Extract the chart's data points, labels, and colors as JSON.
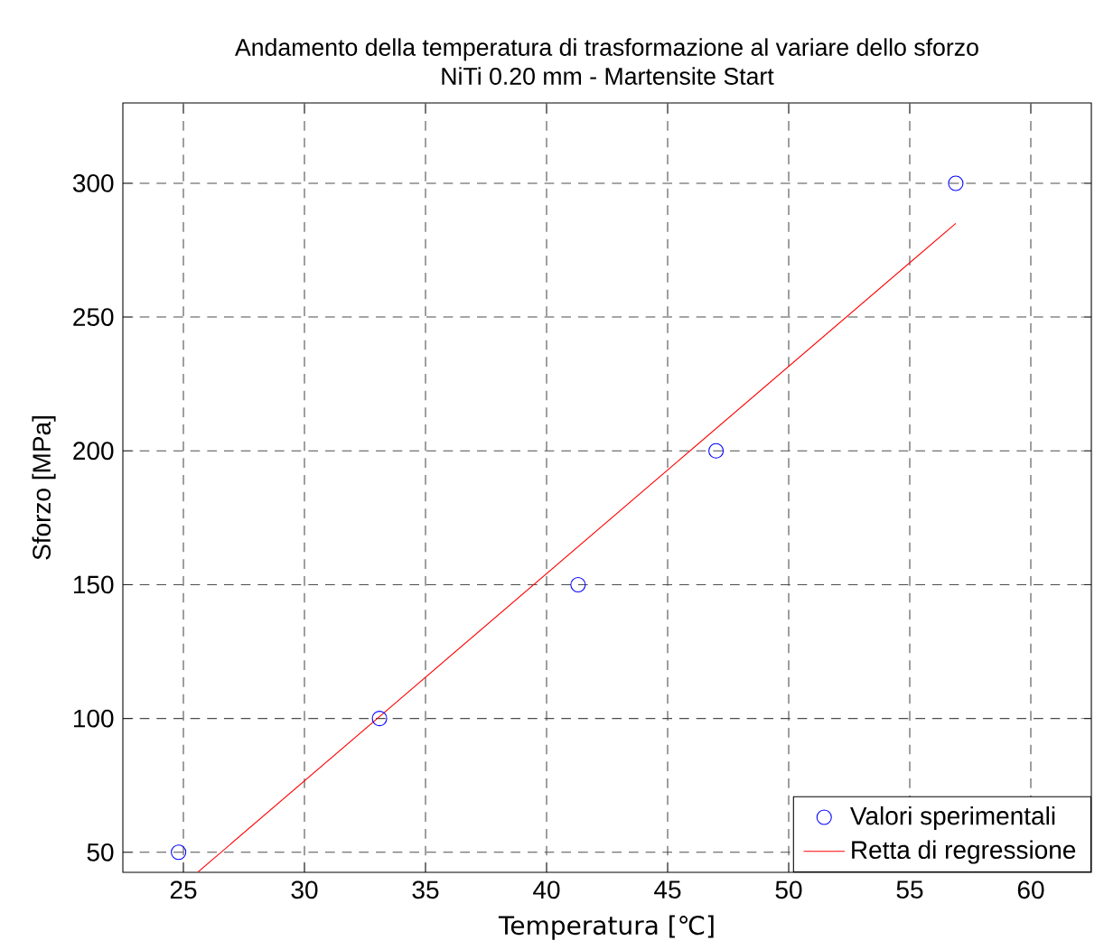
{
  "chart_data": {
    "type": "scatter",
    "title": "Andamento della temperatura di trasformazione al variare dello sforzo",
    "subtitle": "NiTi 0.20 mm - Martensite Start",
    "xlabel": "Temperatura [℃]",
    "ylabel": "Sforzo [MPa]",
    "xlim": [
      22.5,
      62.5
    ],
    "ylim": [
      42.5,
      330
    ],
    "xticks": [
      25,
      30,
      35,
      40,
      45,
      50,
      55,
      60
    ],
    "yticks": [
      50,
      100,
      150,
      200,
      250,
      300
    ],
    "grid": true,
    "legend": "bottom right",
    "series": [
      {
        "name": "Valori sperimentali",
        "marker": "circle",
        "color": "#0000ff",
        "x": [
          24.8,
          33.1,
          41.3,
          47.0,
          56.9
        ],
        "values": [
          50,
          100,
          150,
          200,
          300
        ]
      },
      {
        "name": "Retta di regressione",
        "type": "line",
        "marker": "none",
        "color": "#ff0000",
        "x": [
          25.6,
          56.9
        ],
        "values": [
          42.6,
          285
        ]
      }
    ]
  }
}
